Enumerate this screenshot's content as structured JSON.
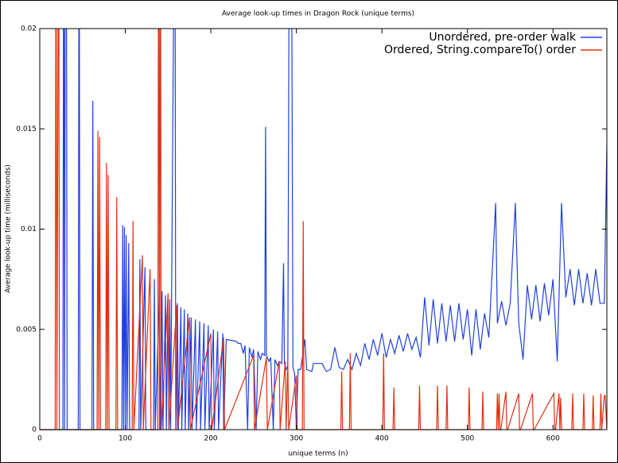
{
  "chart_data": {
    "type": "line",
    "title": "Average look-up times in Dragon Rock (unique terms)",
    "x_label": "unique terms (n)",
    "y_label": "Average look-up time (milliseconds)",
    "xlim": [
      0,
      663
    ],
    "ylim": [
      0,
      0.02
    ],
    "xticks": [
      0,
      100,
      200,
      300,
      400,
      500,
      600
    ],
    "yticks": [
      0,
      0.005,
      0.01,
      0.015,
      0.02
    ],
    "legend": "top-right",
    "series": [
      {
        "name": "Unordered, pre-order walk",
        "color": "#2040e0",
        "x": [
          0,
          27,
          28,
          29,
          30,
          31,
          32,
          45,
          46,
          47,
          61,
          62,
          63,
          96,
          97,
          98,
          99,
          100,
          101,
          102,
          104,
          105,
          116,
          117,
          118,
          123,
          124,
          133,
          134,
          135,
          140,
          141,
          143,
          144,
          147,
          148,
          150,
          151,
          152,
          153,
          158,
          159,
          161,
          162,
          165,
          166,
          169,
          170,
          173,
          174,
          177,
          178,
          182,
          183,
          187,
          188,
          192,
          193,
          197,
          198,
          203,
          204,
          208,
          209,
          214,
          215,
          218,
          230,
          232,
          235,
          238,
          240,
          243,
          245,
          248,
          250,
          253,
          255,
          258,
          260,
          263,
          264,
          265,
          268,
          270,
          273,
          275,
          278,
          280,
          283,
          285,
          286,
          288,
          290,
          292,
          294,
          296,
          298,
          300,
          302,
          305,
          310,
          312,
          318,
          320,
          330,
          335,
          340,
          345,
          350,
          355,
          360,
          365,
          370,
          375,
          380,
          385,
          390,
          395,
          400,
          405,
          410,
          415,
          420,
          425,
          430,
          435,
          440,
          445,
          450,
          455,
          460,
          465,
          470,
          475,
          480,
          485,
          490,
          495,
          500,
          505,
          510,
          515,
          520,
          525,
          533,
          535,
          540,
          545,
          550,
          556,
          560,
          565,
          570,
          575,
          580,
          585,
          590,
          595,
          600,
          605,
          610,
          615,
          620,
          625,
          630,
          635,
          640,
          645,
          650,
          655,
          660,
          663
        ],
        "values": [
          0,
          0,
          0.03,
          0,
          0.03,
          0.03,
          0,
          0,
          0.03,
          0,
          0,
          0.0164,
          0,
          0,
          0.0102,
          0,
          0.0101,
          0,
          0.0097,
          0,
          0.0093,
          0,
          0,
          0.0085,
          0,
          0.0081,
          0,
          0,
          0.0075,
          0,
          0.007,
          0,
          0.0069,
          0,
          0.0067,
          0,
          0.0066,
          0,
          0.0065,
          0,
          0.03,
          0,
          0.0063,
          0,
          0.0061,
          0,
          0.006,
          0,
          0.0058,
          0,
          0.0056,
          0,
          0.0055,
          0,
          0.0054,
          0,
          0.0053,
          0,
          0.0052,
          0,
          0.005,
          0,
          0.0049,
          0,
          0.0048,
          0,
          0.0045,
          0.0044,
          0.0043,
          0.0043,
          0.0038,
          0.0042,
          0,
          0.0041,
          0.0036,
          0.004,
          0,
          0.0039,
          0.0035,
          0.0038,
          0.0037,
          0.0151,
          0.0037,
          0.0034,
          0.0036,
          0,
          0.0035,
          0.0032,
          0.0034,
          0.0033,
          0.0083,
          0.0033,
          0.003,
          0.0032,
          0.03,
          0.03,
          0.0031,
          0.0028,
          0,
          0.003,
          0.003,
          0.0045,
          0.003,
          0.0029,
          0.0033,
          0.0033,
          0.0029,
          0.003,
          0.0041,
          0.0031,
          0.003,
          0.0035,
          0.003,
          0.0038,
          0.0032,
          0.0043,
          0.0035,
          0.0045,
          0.0037,
          0.0048,
          0.0036,
          0.0045,
          0.0038,
          0.0047,
          0.0039,
          0.0048,
          0.004,
          0.0046,
          0.0036,
          0.0066,
          0.0042,
          0.0065,
          0.0043,
          0.0063,
          0.0044,
          0.0062,
          0.0044,
          0.0063,
          0.0045,
          0.006,
          0.0037,
          0.006,
          0.004,
          0.0058,
          0.0046,
          0.0113,
          0.0053,
          0.0064,
          0.0052,
          0.0063,
          0.0113,
          0.0053,
          0.0035,
          0.0072,
          0.0055,
          0.0072,
          0.0054,
          0.0073,
          0.0057,
          0.0075,
          0.0034,
          0.0113,
          0.0066,
          0.008,
          0.0062,
          0.008,
          0.0063,
          0.0078,
          0.0062,
          0.008,
          0.0063,
          0.0063,
          0.0142
        ]
      },
      {
        "name": "Ordered, String.compareTo() order",
        "color": "#e03010",
        "x": [
          0,
          18,
          19,
          20,
          22,
          23,
          67,
          68,
          69,
          70,
          71,
          77,
          78,
          79,
          80,
          81,
          89,
          90,
          91,
          108,
          109,
          110,
          120,
          121,
          129,
          130,
          138,
          139,
          140,
          141,
          142,
          150,
          151,
          160,
          161,
          175,
          176,
          200,
          201,
          215,
          216,
          250,
          251,
          265,
          266,
          280,
          281,
          287,
          288,
          290,
          291,
          300,
          301,
          307,
          308,
          309,
          352,
          353,
          354,
          362,
          363,
          364,
          401,
          402,
          403,
          413,
          414,
          415,
          443,
          444,
          445,
          464,
          465,
          466,
          475,
          476,
          477,
          501,
          502,
          503,
          517,
          518,
          519,
          534,
          535,
          536,
          537,
          538,
          539,
          545,
          546,
          547,
          560,
          561,
          562,
          576,
          577,
          578,
          601,
          602,
          603,
          607,
          608,
          609,
          610,
          622,
          623,
          624,
          635,
          636,
          637,
          646,
          647,
          648,
          655,
          656,
          657,
          660,
          661,
          663
        ],
        "values": [
          0,
          0,
          0.03,
          0,
          0.03,
          0,
          0,
          0.0149,
          0,
          0.0146,
          0,
          0,
          0.0133,
          0,
          0.0127,
          0,
          0,
          0.0116,
          0,
          0,
          0.0104,
          0,
          0.0087,
          0,
          0.008,
          0,
          0,
          0.03,
          0,
          0.03,
          0,
          0.0068,
          0,
          0.0062,
          0,
          0.0056,
          0,
          0.0048,
          0,
          0.0046,
          0,
          0.0037,
          0,
          0.0036,
          0,
          0.0034,
          0,
          0.0034,
          0,
          0.0034,
          0,
          0.0027,
          0,
          0,
          0.0104,
          0,
          0,
          0.0029,
          0,
          0,
          0.0038,
          0,
          0,
          0.0038,
          0,
          0,
          0.0021,
          0,
          0,
          0.0022,
          0,
          0,
          0.0022,
          0,
          0,
          0.0022,
          0,
          0,
          0.0021,
          0,
          0,
          0.0019,
          0,
          0,
          0.0018,
          0,
          0.0018,
          0,
          0,
          0.0019,
          0,
          0,
          0.0018,
          0,
          0,
          0.0018,
          0,
          0,
          0.0018,
          0,
          0,
          0.0018,
          0,
          0.0016,
          0,
          0,
          0.0018,
          0,
          0,
          0.0018,
          0,
          0,
          0.0017,
          0,
          0,
          0.0018,
          0,
          0.0017,
          0.0017,
          0
        ]
      }
    ]
  }
}
